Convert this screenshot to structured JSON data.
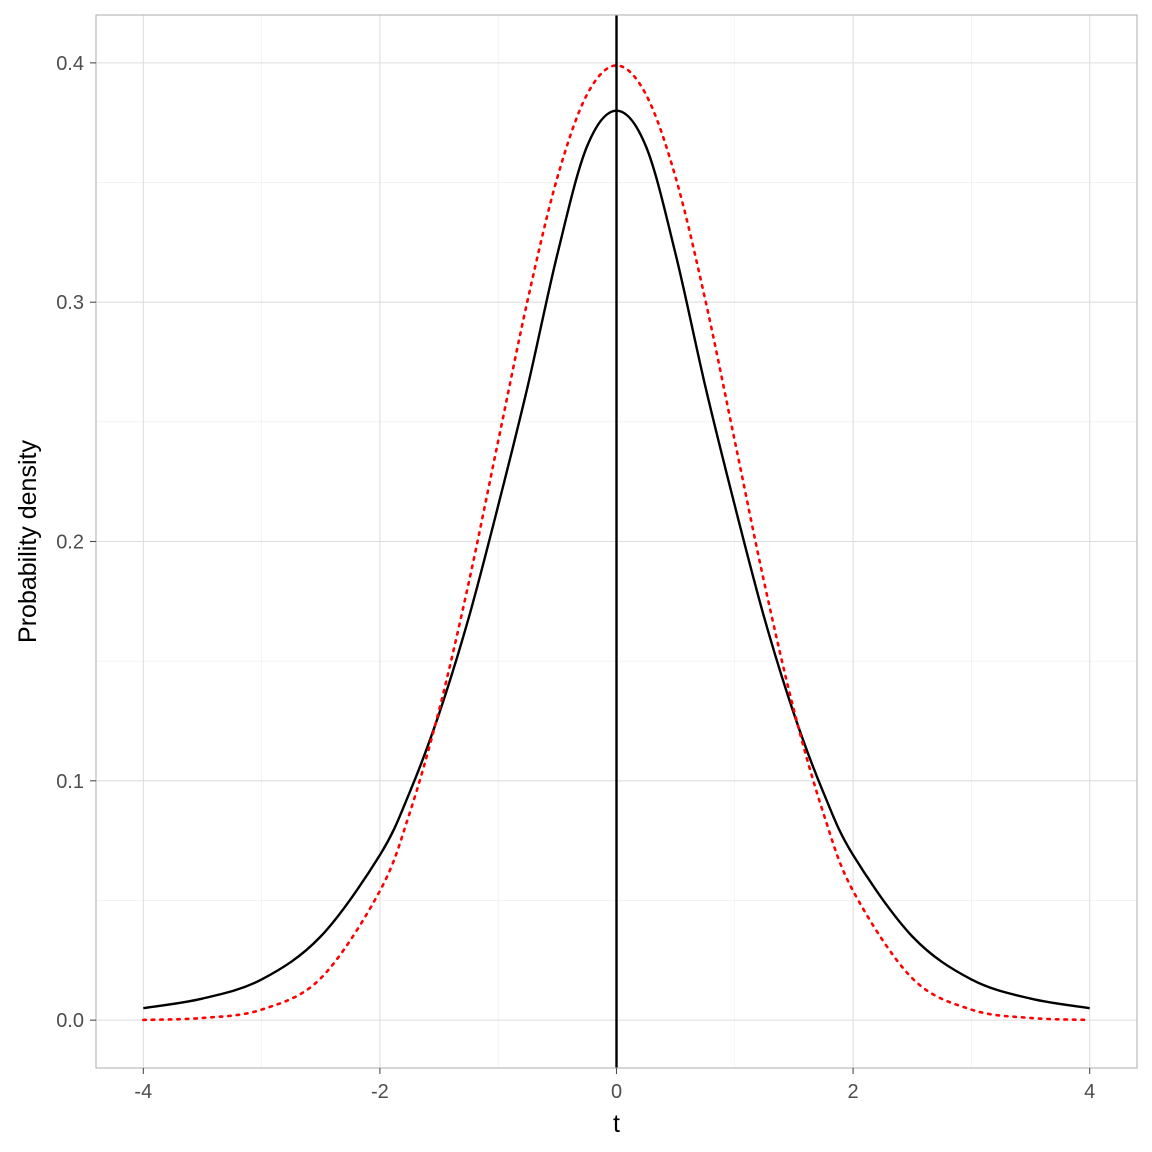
{
  "chart_data": {
    "type": "line",
    "title": "",
    "xlabel": "t",
    "ylabel": "Probability density",
    "xlim": [
      -4.4,
      4.4
    ],
    "ylim": [
      -0.02,
      0.42
    ],
    "x_ticks": [
      -4,
      -2,
      0,
      2,
      4
    ],
    "x_tick_labels": [
      "-4",
      "-2",
      "0",
      "2",
      "4"
    ],
    "y_ticks": [
      0.0,
      0.1,
      0.2,
      0.3,
      0.4
    ],
    "y_tick_labels": [
      "0.0",
      "0.1",
      "0.2",
      "0.3",
      "0.4"
    ],
    "grid": true,
    "legend": "none",
    "vline": {
      "x": 0,
      "color": "#000000"
    },
    "series": [
      {
        "style": "solid",
        "color": "#000000",
        "x": [
          -4,
          -3.5,
          -3,
          -2.5,
          -2,
          -1.75,
          -1.5,
          -1.25,
          -1,
          -0.75,
          -0.5,
          -0.25,
          0,
          0.25,
          0.5,
          0.75,
          1,
          1.25,
          1.5,
          1.75,
          2,
          2.5,
          3,
          3.5,
          4
        ],
        "values": [
          0.005,
          0.009,
          0.017,
          0.035,
          0.069,
          0.095,
          0.128,
          0.168,
          0.215,
          0.265,
          0.32,
          0.365,
          0.38,
          0.365,
          0.32,
          0.265,
          0.215,
          0.168,
          0.128,
          0.095,
          0.069,
          0.035,
          0.017,
          0.009,
          0.005
        ]
      },
      {
        "style": "dotted",
        "color": "#ff0000",
        "x": [
          -4,
          -3.5,
          -3,
          -2.5,
          -2,
          -1.75,
          -1.5,
          -1.25,
          -1,
          -0.75,
          -0.5,
          -0.25,
          0,
          0.25,
          0.5,
          0.75,
          1,
          1.25,
          1.5,
          1.75,
          2,
          2.5,
          3,
          3.5,
          4
        ],
        "values": [
          0.0001,
          0.0009,
          0.0044,
          0.0175,
          0.054,
          0.0863,
          0.1295,
          0.1826,
          0.242,
          0.3011,
          0.3521,
          0.3867,
          0.3989,
          0.3867,
          0.3521,
          0.3011,
          0.242,
          0.1826,
          0.1295,
          0.0863,
          0.054,
          0.0175,
          0.0044,
          0.0009,
          0.0001
        ]
      }
    ]
  }
}
